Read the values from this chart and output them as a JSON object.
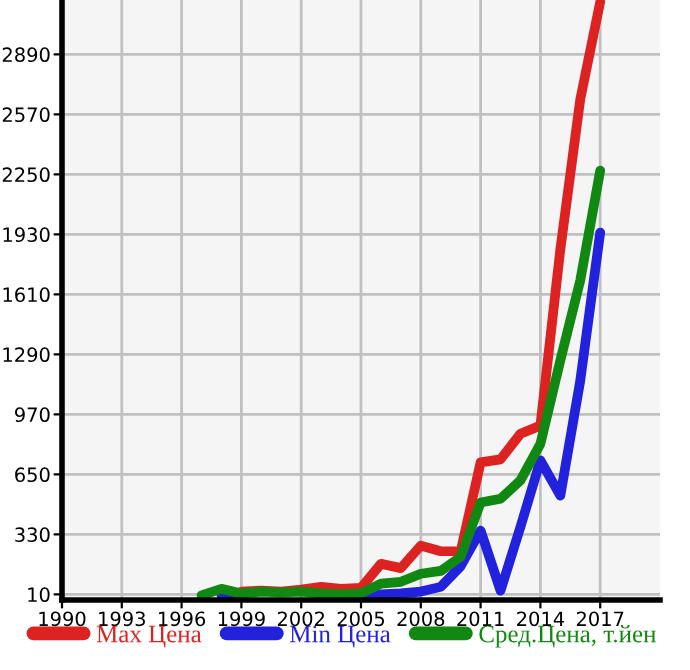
{
  "chart_data": {
    "type": "line",
    "x": [
      1997,
      1998,
      1999,
      2000,
      2001,
      2002,
      2003,
      2004,
      2005,
      2006,
      2007,
      2008,
      2009,
      2010,
      2011,
      2012,
      2013,
      2014,
      2015,
      2016,
      2017
    ],
    "series": [
      {
        "name": "Max Цена",
        "color": "#dd2222",
        "values": [
          null,
          null,
          25,
          30,
          25,
          35,
          50,
          40,
          45,
          173,
          150,
          270,
          240,
          240,
          714,
          730,
          867,
          910,
          1850,
          2650,
          3170
        ]
      },
      {
        "name": "Min Цена",
        "color": "#2222dd",
        "values": [
          null,
          5,
          5,
          null,
          null,
          null,
          null,
          null,
          0,
          10,
          15,
          25,
          50,
          160,
          350,
          30,
          370,
          725,
          537,
          1150,
          1940
        ]
      },
      {
        "name": "Сред.Цена, т.йен",
        "color": "#118811",
        "values": [
          5,
          40,
          15,
          25,
          20,
          25,
          15,
          12,
          15,
          67,
          77,
          120,
          135,
          210,
          500,
          520,
          618,
          813,
          1258,
          1685,
          2270
        ]
      }
    ],
    "xlim": [
      1990,
      2020
    ],
    "xticks": [
      1990,
      1993,
      1996,
      1999,
      2002,
      2005,
      2008,
      2011,
      2014,
      2017
    ],
    "ylim": [
      -20,
      3180
    ],
    "yticks": [
      10,
      330,
      650,
      970,
      1290,
      1610,
      1930,
      2250,
      2570,
      2890
    ],
    "grid": true,
    "legend": "bottom",
    "marker": "none",
    "line_style": "solid"
  }
}
